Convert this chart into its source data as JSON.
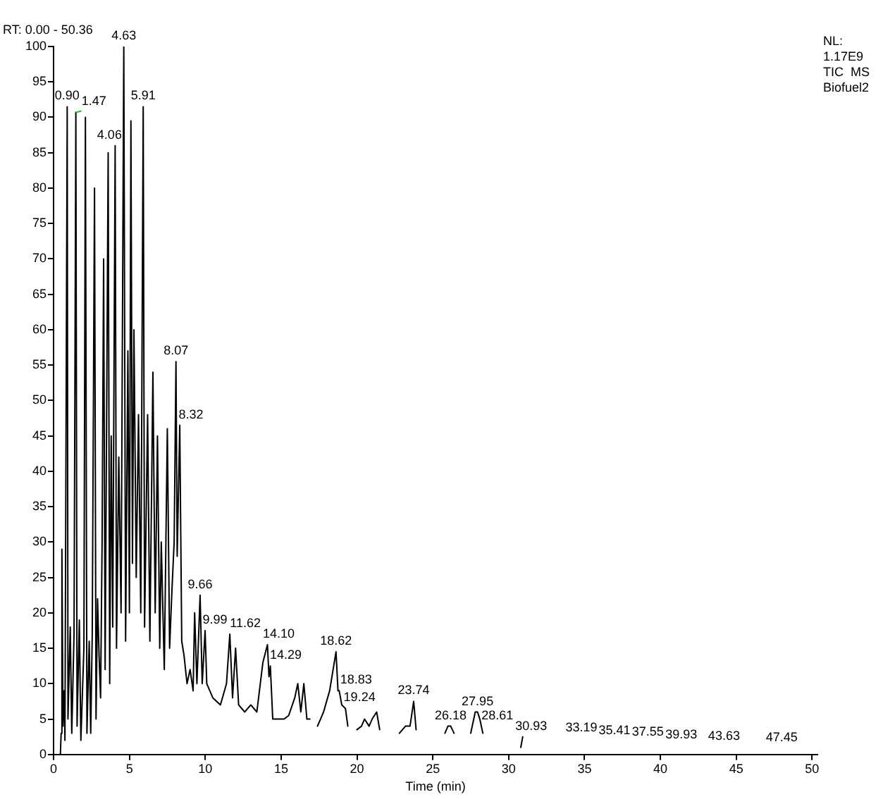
{
  "chart_data": {
    "type": "line",
    "xlabel": "Time (min)",
    "xlim": [
      0,
      50.36
    ],
    "xticks": [
      0,
      5,
      10,
      15,
      20,
      25,
      30,
      35,
      40,
      45,
      50
    ],
    "ylim": [
      0,
      100
    ],
    "yticks": [
      0,
      5,
      10,
      15,
      20,
      25,
      30,
      35,
      40,
      45,
      50,
      55,
      60,
      65,
      70,
      75,
      80,
      85,
      90,
      95,
      100
    ],
    "grid": false,
    "legend": false,
    "marker": "none",
    "line_style": "solid",
    "series": [
      {
        "color": "#000000",
        "x": [
          0.45,
          0.5,
          0.55,
          0.62,
          0.7,
          0.75,
          0.9,
          0.95,
          1.1,
          1.2,
          1.35,
          1.47,
          1.55,
          1.7,
          1.8,
          2.0,
          2.1,
          2.2,
          2.35,
          2.45,
          2.55,
          2.7,
          2.8,
          2.9,
          3.0,
          3.1,
          3.2,
          3.3,
          3.4,
          3.6,
          3.7,
          3.8,
          3.9,
          4.06,
          4.15,
          4.3,
          4.45,
          4.63,
          4.75,
          4.9,
          5.0,
          5.1,
          5.2,
          5.3,
          5.45,
          5.6,
          5.75,
          5.91,
          6.0,
          6.2,
          6.35,
          6.55,
          6.7,
          6.85,
          7.0,
          7.1,
          7.3,
          7.5,
          7.65,
          7.8,
          7.95,
          8.07,
          8.15,
          8.32,
          8.45,
          8.6,
          8.8,
          9.0,
          9.2,
          9.3,
          9.45,
          9.66,
          9.8,
          9.99,
          10.1,
          10.5,
          11.0,
          11.4,
          11.62,
          11.8,
          12.0,
          12.2,
          12.6,
          13.0,
          13.4,
          13.8,
          14.1,
          14.2,
          14.29,
          14.45,
          14.8,
          15.2,
          15.5,
          15.9,
          16.1,
          16.3,
          16.5,
          16.7,
          16.9,
          17.2,
          17.4,
          17.8,
          18.2,
          18.62,
          18.75,
          18.83,
          19.0,
          19.24,
          19.4,
          19.6,
          20.0,
          20.3,
          20.5,
          20.8,
          21.0,
          21.3,
          21.5,
          21.7,
          22.8,
          23.2,
          23.5,
          23.74,
          23.9,
          24.2,
          25.8,
          26.0,
          26.18,
          26.4,
          26.6,
          27.5,
          27.8,
          27.95,
          28.1,
          28.3,
          28.6,
          30.8,
          30.93
        ],
        "values": [
          0,
          3,
          29,
          4,
          9,
          2,
          91.5,
          5,
          18,
          3,
          17,
          90.7,
          4,
          19,
          2,
          15,
          90,
          3,
          16,
          3,
          17,
          80,
          5,
          22,
          14,
          8,
          30,
          70,
          12,
          85,
          10,
          45,
          18,
          86,
          15,
          42,
          20,
          100,
          16,
          57,
          20,
          89.5,
          27,
          60,
          25,
          48,
          20,
          91.5,
          18,
          48,
          16,
          54,
          20,
          45,
          15,
          30,
          12,
          46,
          15,
          23,
          30,
          55.5,
          28,
          46.5,
          16,
          14,
          10,
          12,
          9,
          20,
          10,
          22.5,
          10,
          17.5,
          10,
          8,
          7,
          10,
          17,
          8,
          15,
          7,
          6,
          7,
          6,
          13,
          15.5,
          11,
          12.5,
          5,
          5,
          5,
          5.5,
          8,
          10,
          6,
          10,
          5,
          5,
          null,
          4,
          6,
          9,
          14.5,
          9,
          9,
          7,
          6.5,
          4,
          null,
          3.5,
          4,
          5,
          4,
          5,
          6,
          3.5,
          null,
          3,
          4,
          4,
          7.5,
          3.5,
          null,
          3,
          4,
          4,
          3,
          null,
          3,
          6,
          6,
          5,
          3,
          null,
          1,
          2.5
        ]
      }
    ],
    "annotations": [
      "RT: 0.00 - 50.36",
      "NL:",
      "1.17E9",
      "TIC  MS",
      "Biofuel2",
      {
        "text": "0.90",
        "x": 0.9,
        "y": 91.5
      },
      {
        "text": "1.47",
        "x": 1.47,
        "y": 90.7
      },
      {
        "text": "4.06",
        "x": 4.06,
        "y": 86
      },
      {
        "text": "4.63",
        "x": 4.63,
        "y": 100
      },
      {
        "text": "5.91",
        "x": 5.91,
        "y": 91.5
      },
      {
        "text": "8.07",
        "x": 8.07,
        "y": 55.5
      },
      {
        "text": "8.32",
        "x": 8.32,
        "y": 46.5
      },
      {
        "text": "9.66",
        "x": 9.66,
        "y": 22.5
      },
      {
        "text": "9.99",
        "x": 9.99,
        "y": 17.5
      },
      {
        "text": "11.62",
        "x": 11.62,
        "y": 17
      },
      {
        "text": "14.10",
        "x": 14.1,
        "y": 15.5
      },
      {
        "text": "14.29",
        "x": 14.29,
        "y": 12.5
      },
      {
        "text": "18.62",
        "x": 18.62,
        "y": 14.5
      },
      {
        "text": "18.83",
        "x": 18.83,
        "y": 9
      },
      {
        "text": "19.24",
        "x": 19.24,
        "y": 6.5
      },
      {
        "text": "23.74",
        "x": 23.74,
        "y": 7.5
      },
      {
        "text": "26.18",
        "x": 26.18,
        "y": 4
      },
      {
        "text": "27.95",
        "x": 27.95,
        "y": 6
      },
      {
        "text": "28.61",
        "x": 28.61,
        "y": 4
      },
      {
        "text": "30.93",
        "x": 30.93,
        "y": 2.5
      },
      "33.19",
      "35.41",
      "37.55",
      "39.93",
      "43.63",
      "47.45"
    ]
  }
}
